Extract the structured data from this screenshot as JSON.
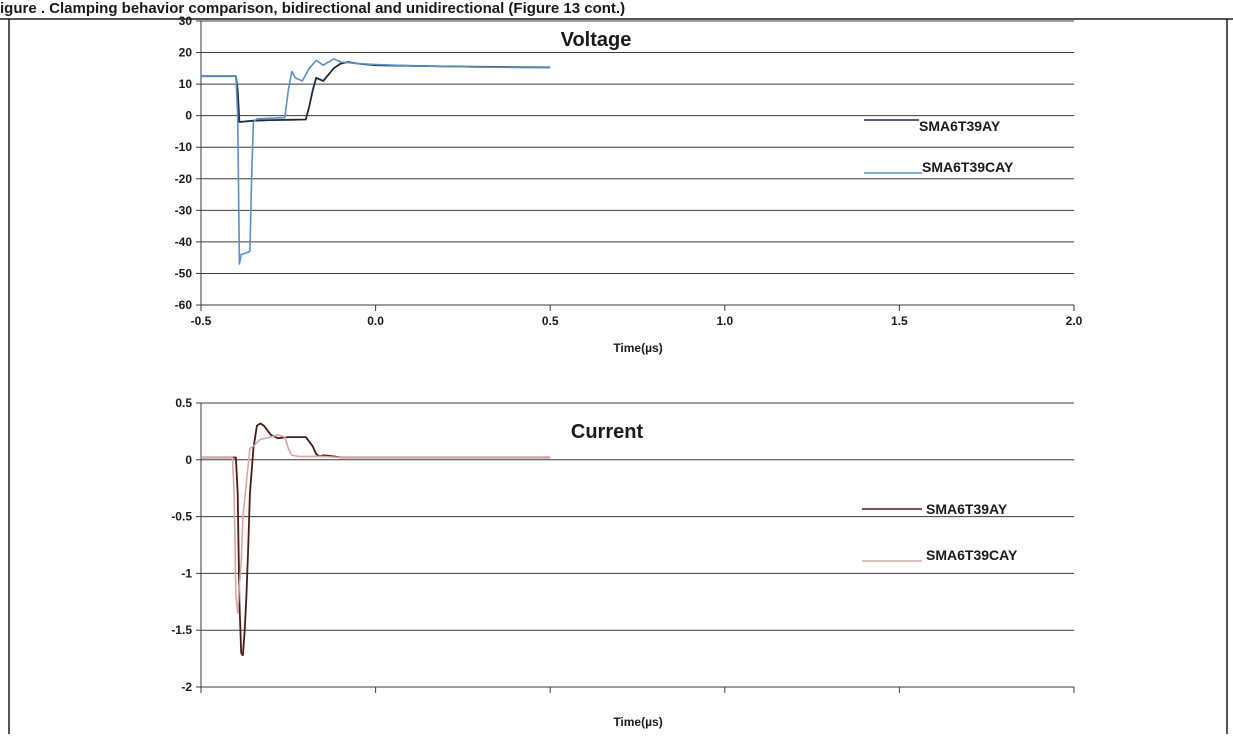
{
  "header_fragment": "igure   .   Clamping behavior comparison, bidirectional and unidirectional (Figure 13 cont.)",
  "chart_data": [
    {
      "type": "line",
      "title": "Voltage",
      "xlabel": "Time(µs)",
      "ylabel": "",
      "xlim": [
        -0.5,
        2.0
      ],
      "ylim": [
        -60,
        30
      ],
      "xticks": [
        "-0.5",
        "0.0",
        "0.5",
        "1.0",
        "1.5",
        "2.0"
      ],
      "yticks": [
        "30",
        "20",
        "10",
        "0",
        "-10",
        "-20",
        "-30",
        "-40",
        "-50",
        "-60"
      ],
      "grid": true,
      "legend_position": "right",
      "series": [
        {
          "name": "SMA6T39AY",
          "color": "#1e2b3a",
          "x": [
            -0.5,
            -0.4,
            -0.395,
            -0.39,
            -0.35,
            -0.3,
            -0.25,
            -0.2,
            -0.19,
            -0.18,
            -0.17,
            -0.15,
            -0.12,
            -0.1,
            -0.08,
            -0.05,
            0.0,
            0.1,
            0.2,
            0.3,
            0.4,
            0.5
          ],
          "y": [
            12.5,
            12.5,
            8,
            -2,
            -1.6,
            -1.4,
            -1.3,
            -1.2,
            3,
            8,
            12,
            11,
            15,
            16.5,
            17,
            16.5,
            16,
            15.8,
            15.6,
            15.5,
            15.4,
            15.3
          ]
        },
        {
          "name": "SMA6T39CAY",
          "color": "#5b8fc4",
          "x": [
            -0.5,
            -0.4,
            -0.395,
            -0.39,
            -0.385,
            -0.37,
            -0.36,
            -0.355,
            -0.35,
            -0.34,
            -0.3,
            -0.26,
            -0.25,
            -0.24,
            -0.23,
            -0.21,
            -0.19,
            -0.17,
            -0.15,
            -0.12,
            -0.1,
            -0.05,
            0.0,
            0.1,
            0.2,
            0.3,
            0.4,
            0.5
          ],
          "y": [
            12.5,
            12.5,
            0,
            -47,
            -44,
            -43.5,
            -43,
            -20,
            -2,
            -1,
            -0.8,
            -0.6,
            8,
            14,
            12,
            11,
            15,
            17.5,
            16,
            18,
            17,
            16.5,
            16.2,
            15.8,
            15.6,
            15.4,
            15.3,
            15.2
          ]
        }
      ]
    },
    {
      "type": "line",
      "title": "Current",
      "xlabel": "Time(µs)",
      "ylabel": "",
      "xlim": [
        -0.5,
        2.0
      ],
      "ylim": [
        -2,
        0.5
      ],
      "xticks": [],
      "yticks": [
        "0.5",
        "0",
        "-0.5",
        "-1",
        "-1.5",
        "-2"
      ],
      "grid": true,
      "legend_position": "right",
      "series": [
        {
          "name": "SMA6T39AY",
          "color": "#4a1a1a",
          "x": [
            -0.5,
            -0.4,
            -0.395,
            -0.39,
            -0.385,
            -0.38,
            -0.375,
            -0.37,
            -0.365,
            -0.36,
            -0.35,
            -0.34,
            -0.33,
            -0.32,
            -0.3,
            -0.28,
            -0.25,
            -0.2,
            -0.18,
            -0.17,
            -0.16,
            -0.15,
            -0.12,
            -0.1,
            0.0,
            0.1,
            0.2,
            0.3,
            0.4,
            0.5
          ],
          "y": [
            0.02,
            0.02,
            -0.3,
            -1.25,
            -1.7,
            -1.72,
            -1.5,
            -1.2,
            -0.8,
            -0.3,
            0.1,
            0.3,
            0.32,
            0.3,
            0.22,
            0.19,
            0.2,
            0.2,
            0.12,
            0.05,
            0.03,
            0.04,
            0.03,
            0.02,
            0.02,
            0.02,
            0.02,
            0.02,
            0.02,
            0.02
          ]
        },
        {
          "name": "SMA6T39CAY",
          "color": "#d7a6a6",
          "x": [
            -0.5,
            -0.41,
            -0.405,
            -0.4,
            -0.395,
            -0.39,
            -0.385,
            -0.38,
            -0.37,
            -0.36,
            -0.35,
            -0.34,
            -0.33,
            -0.3,
            -0.28,
            -0.26,
            -0.25,
            -0.24,
            -0.22,
            -0.2,
            -0.15,
            -0.1,
            0.0,
            0.1,
            0.2,
            0.3,
            0.4,
            0.5
          ],
          "y": [
            0.02,
            0.02,
            -0.3,
            -1.2,
            -1.35,
            -1.1,
            -0.9,
            -0.5,
            -0.2,
            0.1,
            0.12,
            0.15,
            0.18,
            0.2,
            0.22,
            0.2,
            0.1,
            0.04,
            0.03,
            0.03,
            0.03,
            0.02,
            0.02,
            0.02,
            0.02,
            0.02,
            0.02,
            0.02
          ]
        }
      ]
    }
  ]
}
